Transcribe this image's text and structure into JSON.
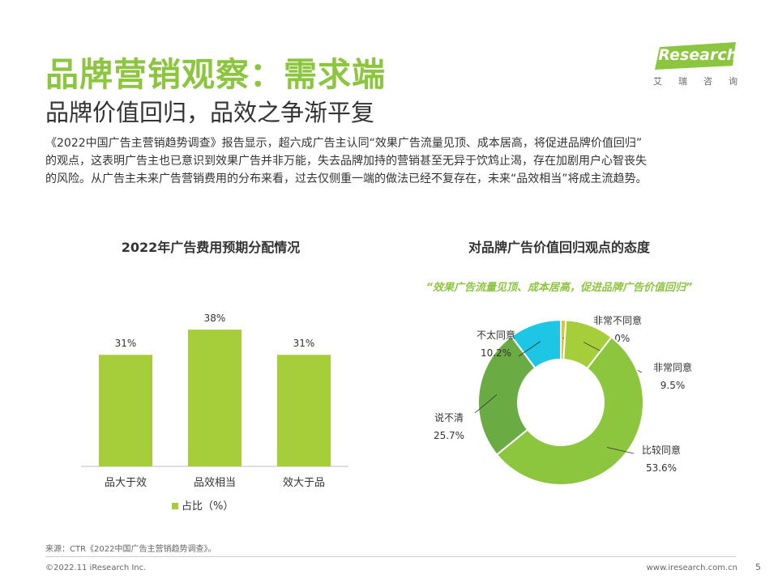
{
  "header": {
    "title": "品牌营销观察：需求端",
    "subtitle": "品牌价值回归，品效之争渐平复"
  },
  "logo": {
    "name": "iResearch",
    "subtitle_chars": [
      "艾",
      "瑞",
      "咨",
      "询"
    ]
  },
  "body": {
    "lines": [
      "《2022中国广告主营销趋势调查》报告显示，超六成广告主认同“效果广告流量见顶、成本居高，将促进品牌价值回归”",
      "的观点，这表明广告主也已意识到效果广告并非万能，失去品牌加持的营销甚至无异于饮鸩止渴，存在加剧用户心智丧失",
      "的风险。从广告主未来广告营销费用的分布来看，过去仅侧重一端的做法已经不复存在，未来“品效相当”将成主流趋势。"
    ]
  },
  "chart_data": [
    {
      "type": "bar",
      "title": "2022年广告费用预期分配情况",
      "categories": [
        "品大于效",
        "品效相当",
        "效大于品"
      ],
      "series": [
        {
          "name": "占比（%）",
          "values": [
            31,
            38,
            31
          ]
        }
      ],
      "data_labels": [
        "31%",
        "38%",
        "31%"
      ],
      "ylim": [
        0,
        45
      ],
      "legend_position": "bottom",
      "grid": false,
      "colors": {
        "bar": "#a6cd3a"
      }
    },
    {
      "type": "pie",
      "title": "对品牌广告价值回归观点的态度",
      "annotation": "“效果广告流量见顶、成本居高，促进品牌广告价值回归”",
      "donut": true,
      "slices": [
        {
          "label": "非常不同意",
          "value": 1.0,
          "value_label": "1.0%",
          "color": "#e6c12e"
        },
        {
          "label": "非常同意",
          "value": 9.5,
          "value_label": "9.5%",
          "color": "#a6cd3a"
        },
        {
          "label": "比较同意",
          "value": 53.6,
          "value_label": "53.6%",
          "color": "#8cc63f"
        },
        {
          "label": "说不清",
          "value": 25.7,
          "value_label": "25.7%",
          "color": "#6aab44"
        },
        {
          "label": "不太同意",
          "value": 10.2,
          "value_label": "10.2%",
          "color": "#1ec6e6"
        }
      ]
    }
  ],
  "footer": {
    "source": "来源：CTR《2022中国广告主营销趋势调查》。",
    "copyright": "©2022.11 iResearch Inc.",
    "website": "www.iresearch.com.cn",
    "page": "5"
  }
}
